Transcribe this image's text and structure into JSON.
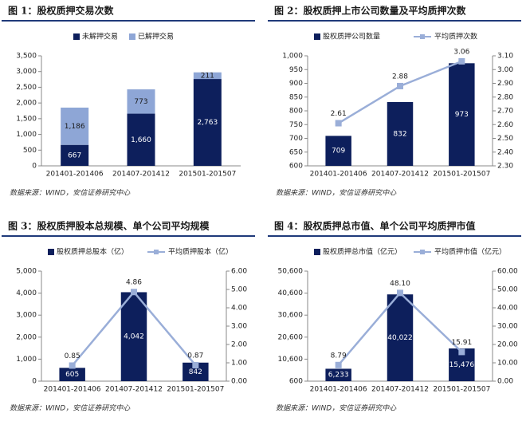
{
  "chart_data": [
    {
      "type": "bar",
      "stacked": true,
      "title": "图 1：股权质押交易次数",
      "source": "数据来源：WIND，安信证券研究中心",
      "categories": [
        "201401-201406",
        "201407-201412",
        "201501-201507"
      ],
      "series": [
        {
          "name": "未解押交易",
          "color": "#0d1f5c",
          "values": [
            667,
            1660,
            2763
          ],
          "value_labels": [
            "667",
            "1,660",
            "2,763"
          ]
        },
        {
          "name": "已解押交易",
          "color": "#8ea6d6",
          "values": [
            1186,
            773,
            211
          ],
          "value_labels": [
            "1,186",
            "773",
            "211"
          ]
        }
      ],
      "ylim": [
        0,
        3500
      ],
      "yticks": [
        0,
        500,
        {
          "value": 1000,
          "label": "1,000"
        },
        {
          "value": 1500,
          "label": "1,500"
        },
        {
          "value": 2000,
          "label": "2,000"
        },
        {
          "value": 2500,
          "label": "2,500"
        },
        {
          "value": 3000,
          "label": "3,000"
        },
        {
          "value": 3500,
          "label": "3,500"
        }
      ]
    },
    {
      "type": "bar",
      "title": "图 2：股权质押上市公司数量及平均质押次数",
      "source": "数据来源：WIND，安信证券研究中心",
      "categories": [
        "201401-201406",
        "201407-201412",
        "201501-201507"
      ],
      "series": [
        {
          "name": "股权质押公司数量",
          "color": "#0d1f5c",
          "values": [
            709,
            832,
            973
          ]
        },
        {
          "name": "平均质押次数",
          "color": "#9aaed8",
          "axis": "y2",
          "values": [
            2.61,
            2.88,
            3.06
          ]
        }
      ],
      "ylim": [
        600,
        1000
      ],
      "yticks": [
        600,
        650,
        700,
        750,
        800,
        850,
        900,
        950,
        {
          "value": 1000,
          "label": "1,000"
        }
      ],
      "y2lim": [
        2.3,
        3.1
      ],
      "y2ticks": [
        {
          "value": 2.3,
          "label": "2.30"
        },
        {
          "value": 2.4,
          "label": "2.40"
        },
        {
          "value": 2.5,
          "label": "2.50"
        },
        {
          "value": 2.6,
          "label": "2.60"
        },
        {
          "value": 2.7,
          "label": "2.70"
        },
        {
          "value": 2.8,
          "label": "2.80"
        },
        {
          "value": 2.9,
          "label": "2.90"
        },
        {
          "value": 3.0,
          "label": "3.00"
        },
        {
          "value": 3.1,
          "label": "3.10"
        }
      ]
    },
    {
      "type": "bar",
      "title": "图 3：股权质押股本总规模、单个公司平均规模",
      "source": "数据来源：WIND，安信证券研究中心",
      "categories": [
        "201401-201406",
        "201407-201412",
        "201501-201507"
      ],
      "series": [
        {
          "name": "股权质押总股本（亿）",
          "color": "#0d1f5c",
          "values": [
            605,
            4042,
            842
          ],
          "value_labels": [
            "605",
            "4,042",
            "842"
          ]
        },
        {
          "name": "平均质押股本（亿）",
          "color": "#9aaed8",
          "axis": "y2",
          "values": [
            0.85,
            4.86,
            0.87
          ]
        }
      ],
      "ylim": [
        0,
        5000
      ],
      "yticks": [
        0,
        {
          "value": 1000,
          "label": "1,000"
        },
        {
          "value": 2000,
          "label": "2,000"
        },
        {
          "value": 3000,
          "label": "3,000"
        },
        {
          "value": 4000,
          "label": "4,000"
        },
        {
          "value": 5000,
          "label": "5,000"
        }
      ],
      "y2lim": [
        0,
        6
      ],
      "y2ticks": [
        {
          "value": 0,
          "label": "0.00"
        },
        {
          "value": 1,
          "label": "1.00"
        },
        {
          "value": 2,
          "label": "2.00"
        },
        {
          "value": 3,
          "label": "3.00"
        },
        {
          "value": 4,
          "label": "4.00"
        },
        {
          "value": 5,
          "label": "5.00"
        },
        {
          "value": 6,
          "label": "6.00"
        }
      ]
    },
    {
      "type": "bar",
      "title": "图 4：股权质押总市值、单个公司平均质押市值",
      "source": "数据来源：WIND，安信证券研究中心",
      "categories": [
        "201401-201406",
        "201407-201412",
        "201501-201507"
      ],
      "series": [
        {
          "name": "股权质押总市值（亿元）",
          "color": "#0d1f5c",
          "values": [
            6233,
            40022,
            15476
          ],
          "value_labels": [
            "6,233",
            "40,022",
            "15,476"
          ]
        },
        {
          "name": "平均质押市值（亿元）",
          "color": "#9aaed8",
          "axis": "y2",
          "values": [
            8.79,
            48.1,
            15.91
          ],
          "value_labels": [
            "8.79",
            "48.10",
            "15.91"
          ]
        }
      ],
      "ylim": [
        600,
        50600
      ],
      "yticks": [
        600,
        {
          "value": 10600,
          "label": "10,600"
        },
        {
          "value": 20600,
          "label": "20,600"
        },
        {
          "value": 30600,
          "label": "30,600"
        },
        {
          "value": 40600,
          "label": "40,600"
        },
        {
          "value": 50600,
          "label": "50,600"
        }
      ],
      "y2lim": [
        0,
        60
      ],
      "y2ticks": [
        {
          "value": 0,
          "label": "0.00"
        },
        {
          "value": 10,
          "label": "10.00"
        },
        {
          "value": 20,
          "label": "20.00"
        },
        {
          "value": 30,
          "label": "30.00"
        },
        {
          "value": 40,
          "label": "40.00"
        },
        {
          "value": 50,
          "label": "50.00"
        },
        {
          "value": 60,
          "label": "60.00"
        }
      ]
    }
  ]
}
